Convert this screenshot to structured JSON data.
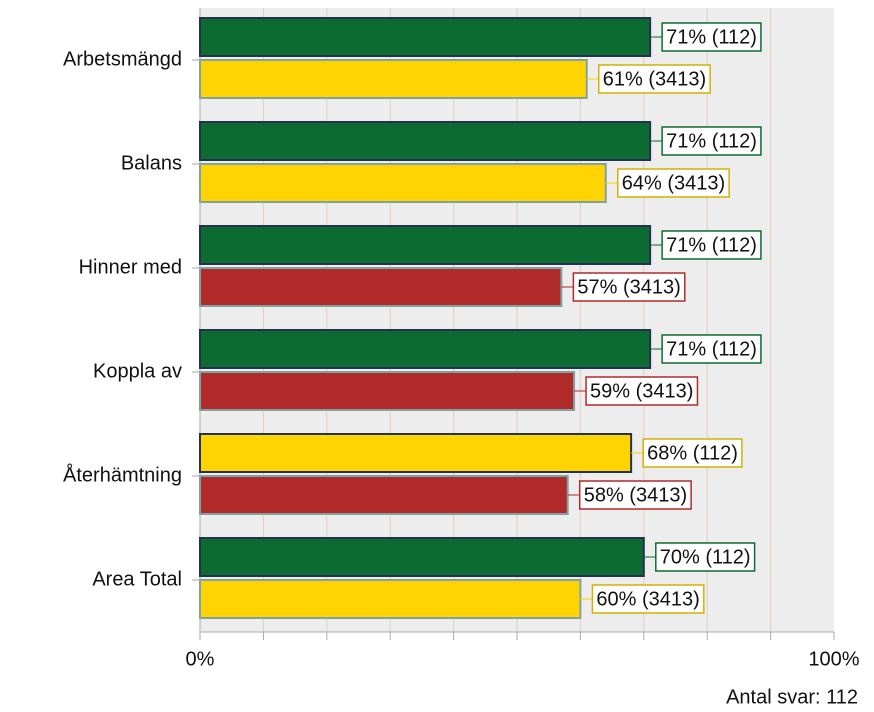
{
  "chart_data": {
    "type": "bar",
    "orientation": "horizontal",
    "categories": [
      "Arbetsmängd",
      "Balans",
      "Hinner med",
      "Koppla av",
      "Återhämtning",
      "Area Total"
    ],
    "series": [
      {
        "values": [
          71,
          71,
          71,
          71,
          68,
          70
        ],
        "value_labels": [
          "71% (112)",
          "71% (112)",
          "71% (112)",
          "71% (112)",
          "68% (112)",
          "70% (112)"
        ],
        "colors": [
          "#0b6b31",
          "#0b6b31",
          "#0b6b31",
          "#0b6b31",
          "#ffd400",
          "#0b6b31"
        ],
        "edgecolor": "#24324f"
      },
      {
        "values": [
          61,
          64,
          57,
          59,
          58,
          60
        ],
        "value_labels": [
          "61% (3413)",
          "64% (3413)",
          "57% (3413)",
          "59% (3413)",
          "58% (3413)",
          "60% (3413)"
        ],
        "colors": [
          "#ffd400",
          "#ffd400",
          "#b22b2b",
          "#b22b2b",
          "#b22b2b",
          "#ffd400"
        ],
        "edgecolor": "#7fa3a0"
      }
    ],
    "xlim": [
      0,
      100
    ],
    "xticks": [
      {
        "value": 0,
        "label": "0%"
      },
      {
        "value": 100,
        "label": "100%"
      }
    ],
    "minor_xticks": [
      10,
      20,
      30,
      40,
      50,
      60,
      70,
      80,
      90
    ],
    "grid": true,
    "annotation": "Antal svar: 112"
  }
}
